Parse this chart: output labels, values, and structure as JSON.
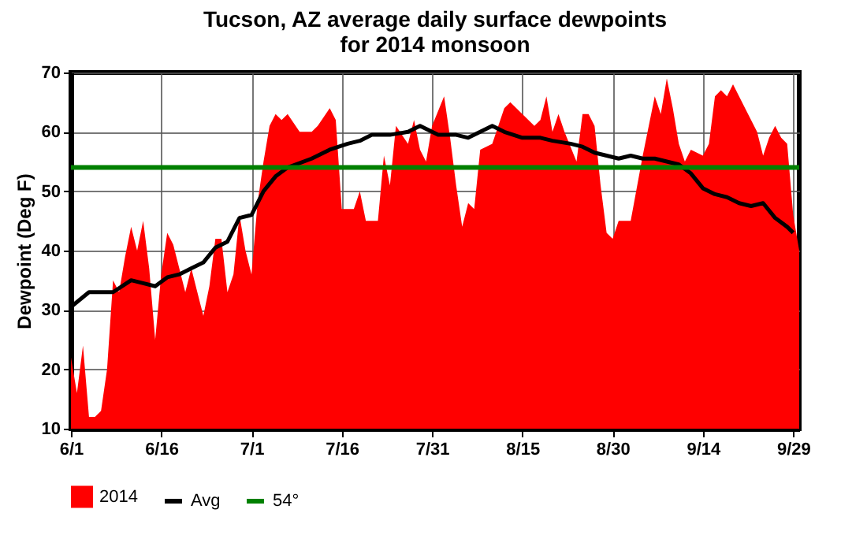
{
  "chart_data": {
    "type": "area",
    "title": "Tucson, AZ average daily surface dewpoints\nfor 2014 monsoon",
    "ylabel": "Dewpoint (Deg F)",
    "xlim": [
      "2014-06-01",
      "2014-09-30"
    ],
    "xticks": [
      {
        "value": "2014-06-01",
        "label": "6/1"
      },
      {
        "value": "2014-06-16",
        "label": "6/16"
      },
      {
        "value": "2014-07-01",
        "label": "7/1"
      },
      {
        "value": "2014-07-16",
        "label": "7/16"
      },
      {
        "value": "2014-07-31",
        "label": "7/31"
      },
      {
        "value": "2014-08-15",
        "label": "8/15"
      },
      {
        "value": "2014-08-30",
        "label": "8/30"
      },
      {
        "value": "2014-09-14",
        "label": "9/14"
      },
      {
        "value": "2014-09-29",
        "label": "9/29"
      }
    ],
    "ylim": [
      10,
      70
    ],
    "yticks": [
      10,
      20,
      30,
      40,
      50,
      60,
      70
    ],
    "grid": true,
    "legend": "bottom",
    "series": [
      {
        "name": "2014",
        "color": "#ff0000",
        "x": [
          "2014-06-01",
          "2014-06-02",
          "2014-06-03",
          "2014-06-04",
          "2014-06-05",
          "2014-06-06",
          "2014-06-07",
          "2014-06-08",
          "2014-06-09",
          "2014-06-10",
          "2014-06-11",
          "2014-06-12",
          "2014-06-13",
          "2014-06-14",
          "2014-06-15",
          "2014-06-16",
          "2014-06-17",
          "2014-06-18",
          "2014-06-19",
          "2014-06-20",
          "2014-06-21",
          "2014-06-22",
          "2014-06-23",
          "2014-06-24",
          "2014-06-25",
          "2014-06-26",
          "2014-06-27",
          "2014-06-28",
          "2014-06-29",
          "2014-06-30",
          "2014-07-01",
          "2014-07-02",
          "2014-07-03",
          "2014-07-04",
          "2014-07-05",
          "2014-07-06",
          "2014-07-07",
          "2014-07-09",
          "2014-07-11",
          "2014-07-12",
          "2014-07-14",
          "2014-07-15",
          "2014-07-16",
          "2014-07-18",
          "2014-07-19",
          "2014-07-20",
          "2014-07-22",
          "2014-07-23",
          "2014-07-24",
          "2014-07-25",
          "2014-07-27",
          "2014-07-28",
          "2014-07-29",
          "2014-07-30",
          "2014-07-31",
          "2014-08-02",
          "2014-08-03",
          "2014-08-04",
          "2014-08-05",
          "2014-08-06",
          "2014-08-07",
          "2014-08-08",
          "2014-08-10",
          "2014-08-12",
          "2014-08-13",
          "2014-08-15",
          "2014-08-17",
          "2014-08-18",
          "2014-08-19",
          "2014-08-20",
          "2014-08-21",
          "2014-08-22",
          "2014-08-24",
          "2014-08-25",
          "2014-08-26",
          "2014-08-27",
          "2014-08-28",
          "2014-08-29",
          "2014-08-30",
          "2014-08-31",
          "2014-09-02",
          "2014-09-04",
          "2014-09-06",
          "2014-09-07",
          "2014-09-08",
          "2014-09-09",
          "2014-09-10",
          "2014-09-11",
          "2014-09-12",
          "2014-09-14",
          "2014-09-15",
          "2014-09-16",
          "2014-09-17",
          "2014-09-18",
          "2014-09-19",
          "2014-09-21",
          "2014-09-23",
          "2014-09-24",
          "2014-09-25",
          "2014-09-26",
          "2014-09-27",
          "2014-09-28",
          "2014-09-29",
          "2014-09-30"
        ],
        "values": [
          22,
          16,
          24,
          12,
          12,
          13,
          20,
          35,
          33,
          39,
          44,
          40,
          45,
          37,
          25,
          36,
          43,
          41,
          37,
          33,
          37,
          33,
          29,
          34,
          42,
          42,
          33,
          36,
          46,
          40,
          36,
          48,
          55,
          61,
          63,
          62,
          63,
          60,
          60,
          61,
          64,
          62,
          47,
          47,
          50,
          45,
          45,
          56,
          51,
          61,
          58,
          62,
          57,
          55,
          61,
          66,
          59,
          51,
          44,
          48,
          47,
          57,
          58,
          64,
          65,
          63,
          61,
          62,
          66,
          60,
          63,
          60,
          55,
          63,
          63,
          61,
          51,
          43,
          42,
          45,
          45,
          56,
          66,
          63,
          69,
          64,
          58,
          55,
          57,
          56,
          58,
          66,
          67,
          66,
          68,
          64,
          60,
          56,
          59,
          61,
          59,
          58,
          46,
          40
        ]
      },
      {
        "name": "Avg",
        "type": "line",
        "color": "#000000",
        "x": [
          "2014-06-01",
          "2014-06-04",
          "2014-06-08",
          "2014-06-11",
          "2014-06-13",
          "2014-06-15",
          "2014-06-17",
          "2014-06-19",
          "2014-06-21",
          "2014-06-23",
          "2014-06-25",
          "2014-06-27",
          "2014-06-29",
          "2014-07-01",
          "2014-07-03",
          "2014-07-05",
          "2014-07-07",
          "2014-07-11",
          "2014-07-14",
          "2014-07-17",
          "2014-07-19",
          "2014-07-21",
          "2014-07-24",
          "2014-07-27",
          "2014-07-29",
          "2014-08-01",
          "2014-08-04",
          "2014-08-06",
          "2014-08-08",
          "2014-08-10",
          "2014-08-12",
          "2014-08-15",
          "2014-08-18",
          "2014-08-20",
          "2014-08-23",
          "2014-08-25",
          "2014-08-27",
          "2014-08-29",
          "2014-08-31",
          "2014-09-02",
          "2014-09-04",
          "2014-09-06",
          "2014-09-08",
          "2014-09-10",
          "2014-09-12",
          "2014-09-14",
          "2014-09-16",
          "2014-09-18",
          "2014-09-20",
          "2014-09-22",
          "2014-09-24",
          "2014-09-26",
          "2014-09-28",
          "2014-09-29"
        ],
        "values": [
          30.5,
          33,
          33,
          35,
          34.5,
          34,
          35.5,
          36,
          37,
          38,
          40.5,
          41.5,
          45.5,
          46,
          50,
          52.5,
          54,
          55.5,
          57,
          58,
          58.5,
          59.5,
          59.5,
          60,
          61,
          59.5,
          59.5,
          59,
          60,
          61,
          60,
          59,
          59,
          58.5,
          58,
          57.5,
          56.5,
          56,
          55.5,
          56,
          55.5,
          55.5,
          55,
          54.5,
          53,
          50.5,
          49.5,
          49,
          48,
          47.5,
          48,
          45.5,
          44,
          43
        ]
      }
    ],
    "ref_lines": [
      {
        "axis": "y",
        "value": 54,
        "label": "54°",
        "color": "#008000"
      }
    ]
  }
}
